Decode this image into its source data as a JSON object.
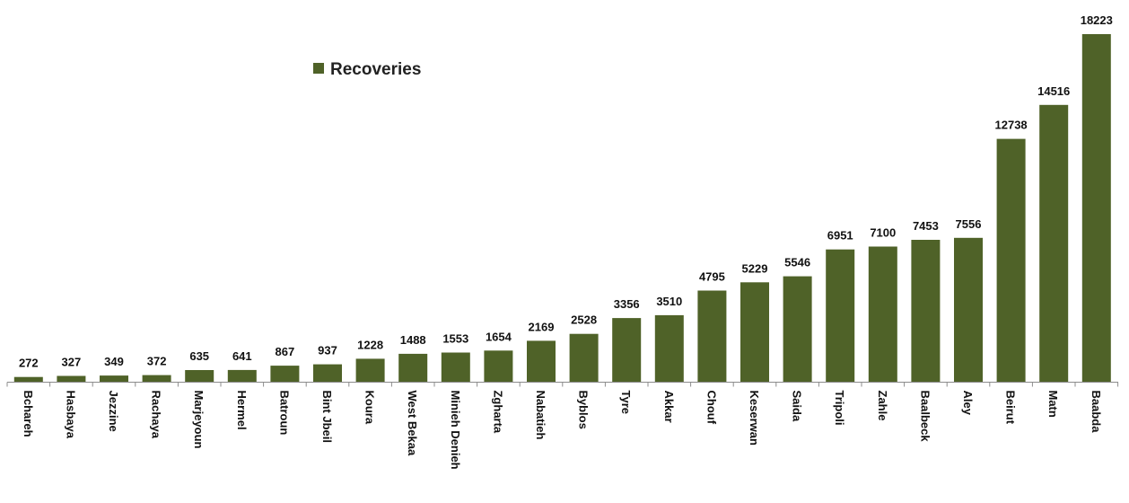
{
  "chart_data": {
    "type": "bar",
    "categories": [
      "Bchareh",
      "Hasbaya",
      "Jezzine",
      "Rachaya",
      "Marjeyoun",
      "Hermel",
      "Batroun",
      "Bint Jbeil",
      "Koura",
      "West Bekaa",
      "Minieh Denieh",
      "Zgharta",
      "Nabatieh",
      "Byblos",
      "Tyre",
      "Akkar",
      "Chouf",
      "Keserwan",
      "Saida",
      "Tripoli",
      "Zahle",
      "Baalbeck",
      "Aley",
      "Beirut",
      "Matn",
      "Baabda"
    ],
    "series": [
      {
        "name": "Recoveries",
        "values": [
          272,
          327,
          349,
          372,
          635,
          641,
          867,
          937,
          1228,
          1488,
          1553,
          1654,
          2169,
          2528,
          3356,
          3510,
          4795,
          5229,
          5546,
          6951,
          7100,
          7453,
          7556,
          12738,
          14516,
          18223
        ],
        "color": "#4f6228"
      }
    ],
    "ylim": [
      0,
      18223
    ],
    "grid": false,
    "legend_placement": "top-center",
    "data_labels": true
  }
}
